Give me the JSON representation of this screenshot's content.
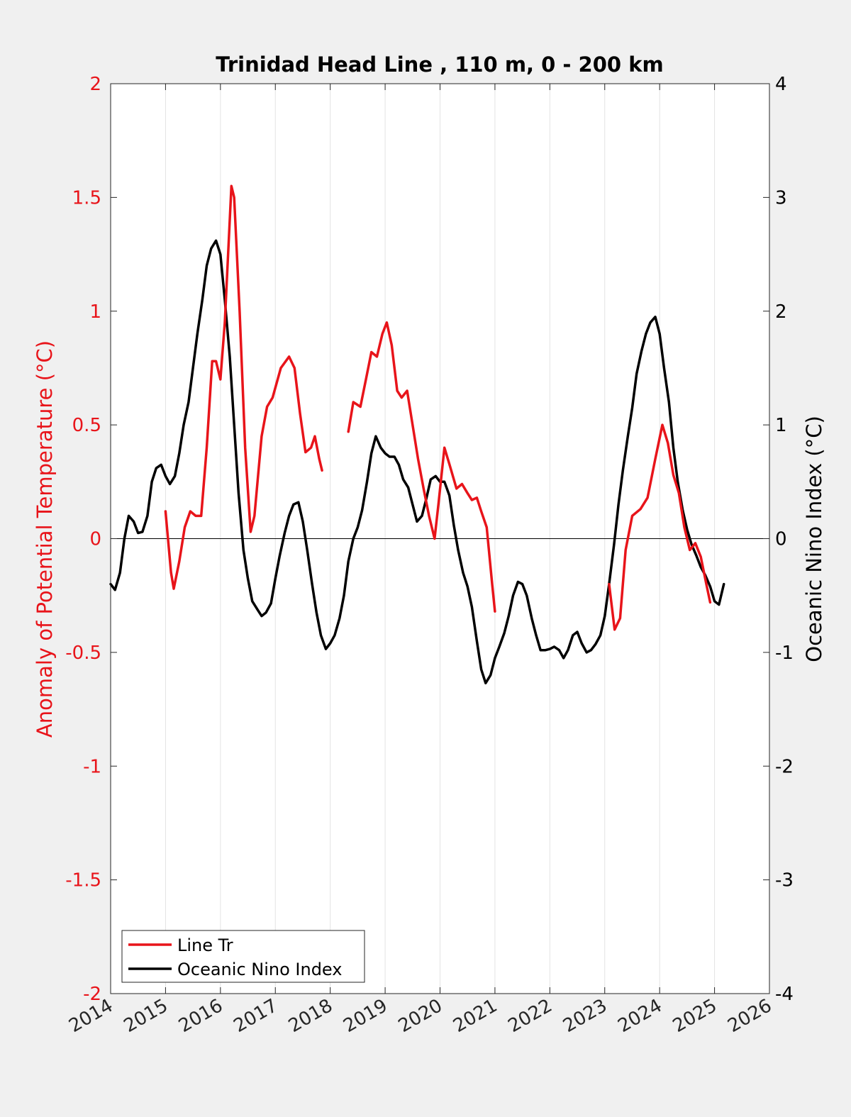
{
  "chart_data": {
    "type": "line",
    "title": "Trinidad Head Line , 110 m, 0 - 200 km",
    "xlabel": "",
    "ylabel_left": "Anomaly of Potential Temperature (°C)",
    "ylabel_right": "Oceanic Nino Index (°C)",
    "xlim": [
      2014,
      2026
    ],
    "ylim_left": [
      -2,
      2
    ],
    "ylim_right": [
      -4,
      4
    ],
    "xticks": [
      "2014",
      "2015",
      "2016",
      "2017",
      "2018",
      "2019",
      "2020",
      "2021",
      "2022",
      "2023",
      "2024",
      "2025",
      "2026"
    ],
    "yticks_left": [
      "2",
      "1.5",
      "1",
      "0.5",
      "0",
      "-0.5",
      "-1",
      "-1.5",
      "-2"
    ],
    "yticks_right": [
      "4",
      "3",
      "2",
      "1",
      "0",
      "-1",
      "-2",
      "-3",
      "-4"
    ],
    "grid": "vertical x-grid on",
    "legend_position": "bottom-left",
    "colors": {
      "line_tr": "#e8141a",
      "oni": "#000000",
      "left_axis": "#e8141a",
      "right_axis": "#000000"
    },
    "series": [
      {
        "name": "Line Tr",
        "axis": "left",
        "segments": [
          [
            [
              2015.0,
              0.12
            ],
            [
              2015.1,
              -0.15
            ],
            [
              2015.15,
              -0.22
            ],
            [
              2015.25,
              -0.1
            ],
            [
              2015.35,
              0.05
            ],
            [
              2015.45,
              0.12
            ],
            [
              2015.55,
              0.1
            ],
            [
              2015.65,
              0.1
            ],
            [
              2015.75,
              0.4
            ],
            [
              2015.85,
              0.78
            ],
            [
              2015.92,
              0.78
            ],
            [
              2016.0,
              0.7
            ],
            [
              2016.08,
              0.95
            ],
            [
              2016.2,
              1.55
            ],
            [
              2016.25,
              1.5
            ],
            [
              2016.35,
              1.0
            ],
            [
              2016.45,
              0.4
            ],
            [
              2016.55,
              0.03
            ],
            [
              2016.62,
              0.1
            ],
            [
              2016.75,
              0.45
            ],
            [
              2016.85,
              0.58
            ],
            [
              2016.95,
              0.62
            ],
            [
              2017.1,
              0.75
            ],
            [
              2017.25,
              0.8
            ],
            [
              2017.35,
              0.75
            ],
            [
              2017.45,
              0.55
            ],
            [
              2017.55,
              0.38
            ],
            [
              2017.65,
              0.4
            ],
            [
              2017.72,
              0.45
            ],
            [
              2017.8,
              0.35
            ],
            [
              2017.85,
              0.3
            ]
          ],
          [
            [
              2018.33,
              0.47
            ],
            [
              2018.42,
              0.6
            ],
            [
              2018.55,
              0.58
            ],
            [
              2018.65,
              0.7
            ],
            [
              2018.75,
              0.82
            ],
            [
              2018.85,
              0.8
            ],
            [
              2018.95,
              0.9
            ],
            [
              2019.03,
              0.95
            ],
            [
              2019.12,
              0.85
            ],
            [
              2019.22,
              0.65
            ],
            [
              2019.3,
              0.62
            ],
            [
              2019.4,
              0.65
            ],
            [
              2019.5,
              0.5
            ],
            [
              2019.6,
              0.35
            ],
            [
              2019.7,
              0.22
            ],
            [
              2019.8,
              0.1
            ],
            [
              2019.9,
              0.0
            ],
            [
              2019.97,
              0.15
            ],
            [
              2020.08,
              0.4
            ],
            [
              2020.18,
              0.32
            ],
            [
              2020.3,
              0.22
            ],
            [
              2020.4,
              0.24
            ],
            [
              2020.5,
              0.2
            ],
            [
              2020.58,
              0.17
            ],
            [
              2020.67,
              0.18
            ],
            [
              2020.75,
              0.12
            ],
            [
              2020.85,
              0.05
            ],
            [
              2020.95,
              -0.2
            ],
            [
              2021.0,
              -0.32
            ]
          ],
          [
            [
              2023.08,
              -0.2
            ],
            [
              2023.18,
              -0.4
            ],
            [
              2023.28,
              -0.35
            ],
            [
              2023.38,
              -0.05
            ],
            [
              2023.5,
              0.1
            ],
            [
              2023.65,
              0.13
            ],
            [
              2023.78,
              0.18
            ],
            [
              2023.92,
              0.35
            ],
            [
              2024.05,
              0.5
            ],
            [
              2024.15,
              0.42
            ],
            [
              2024.25,
              0.28
            ],
            [
              2024.35,
              0.2
            ],
            [
              2024.45,
              0.05
            ],
            [
              2024.55,
              -0.05
            ],
            [
              2024.65,
              -0.02
            ],
            [
              2024.75,
              -0.08
            ],
            [
              2024.85,
              -0.2
            ],
            [
              2024.92,
              -0.28
            ]
          ]
        ]
      },
      {
        "name": "Oceanic Nino Index",
        "axis": "right",
        "segments": [
          [
            [
              2014.0,
              -0.4
            ],
            [
              2014.08,
              -0.45
            ],
            [
              2014.17,
              -0.3
            ],
            [
              2014.25,
              0.0
            ],
            [
              2014.33,
              0.2
            ],
            [
              2014.42,
              0.15
            ],
            [
              2014.5,
              0.05
            ],
            [
              2014.58,
              0.06
            ],
            [
              2014.67,
              0.2
            ],
            [
              2014.75,
              0.5
            ],
            [
              2014.83,
              0.62
            ],
            [
              2014.92,
              0.65
            ],
            [
              2015.0,
              0.55
            ],
            [
              2015.08,
              0.48
            ],
            [
              2015.17,
              0.55
            ],
            [
              2015.25,
              0.75
            ],
            [
              2015.33,
              1.0
            ],
            [
              2015.42,
              1.2
            ],
            [
              2015.5,
              1.5
            ],
            [
              2015.58,
              1.8
            ],
            [
              2015.67,
              2.1
            ],
            [
              2015.75,
              2.4
            ],
            [
              2015.83,
              2.55
            ],
            [
              2015.92,
              2.62
            ],
            [
              2016.0,
              2.5
            ],
            [
              2016.08,
              2.1
            ],
            [
              2016.17,
              1.6
            ],
            [
              2016.25,
              1.0
            ],
            [
              2016.33,
              0.4
            ],
            [
              2016.42,
              -0.1
            ],
            [
              2016.5,
              -0.35
            ],
            [
              2016.58,
              -0.55
            ],
            [
              2016.67,
              -0.62
            ],
            [
              2016.75,
              -0.68
            ],
            [
              2016.83,
              -0.65
            ],
            [
              2016.92,
              -0.57
            ],
            [
              2017.0,
              -0.35
            ],
            [
              2017.08,
              -0.15
            ],
            [
              2017.17,
              0.05
            ],
            [
              2017.25,
              0.2
            ],
            [
              2017.33,
              0.3
            ],
            [
              2017.42,
              0.32
            ],
            [
              2017.5,
              0.15
            ],
            [
              2017.58,
              -0.1
            ],
            [
              2017.67,
              -0.4
            ],
            [
              2017.75,
              -0.65
            ],
            [
              2017.83,
              -0.85
            ],
            [
              2017.92,
              -0.97
            ],
            [
              2018.0,
              -0.92
            ],
            [
              2018.08,
              -0.85
            ],
            [
              2018.17,
              -0.7
            ],
            [
              2018.25,
              -0.5
            ],
            [
              2018.33,
              -0.2
            ],
            [
              2018.42,
              0.0
            ],
            [
              2018.5,
              0.1
            ],
            [
              2018.58,
              0.25
            ],
            [
              2018.67,
              0.5
            ],
            [
              2018.75,
              0.75
            ],
            [
              2018.83,
              0.9
            ],
            [
              2018.92,
              0.8
            ],
            [
              2019.0,
              0.75
            ],
            [
              2019.08,
              0.72
            ],
            [
              2019.17,
              0.72
            ],
            [
              2019.25,
              0.65
            ],
            [
              2019.33,
              0.52
            ],
            [
              2019.42,
              0.45
            ],
            [
              2019.5,
              0.3
            ],
            [
              2019.58,
              0.15
            ],
            [
              2019.67,
              0.2
            ],
            [
              2019.75,
              0.35
            ],
            [
              2019.83,
              0.52
            ],
            [
              2019.92,
              0.55
            ],
            [
              2020.0,
              0.5
            ],
            [
              2020.08,
              0.5
            ],
            [
              2020.17,
              0.38
            ],
            [
              2020.25,
              0.12
            ],
            [
              2020.33,
              -0.1
            ],
            [
              2020.42,
              -0.3
            ],
            [
              2020.5,
              -0.42
            ],
            [
              2020.58,
              -0.6
            ],
            [
              2020.67,
              -0.9
            ],
            [
              2020.75,
              -1.15
            ],
            [
              2020.83,
              -1.27
            ],
            [
              2020.92,
              -1.2
            ],
            [
              2021.0,
              -1.05
            ],
            [
              2021.08,
              -0.95
            ],
            [
              2021.17,
              -0.83
            ],
            [
              2021.25,
              -0.68
            ],
            [
              2021.33,
              -0.5
            ],
            [
              2021.42,
              -0.38
            ],
            [
              2021.5,
              -0.4
            ],
            [
              2021.58,
              -0.5
            ],
            [
              2021.67,
              -0.7
            ],
            [
              2021.75,
              -0.85
            ],
            [
              2021.83,
              -0.98
            ],
            [
              2021.92,
              -0.98
            ],
            [
              2022.0,
              -0.97
            ],
            [
              2022.08,
              -0.95
            ],
            [
              2022.17,
              -0.98
            ],
            [
              2022.25,
              -1.05
            ],
            [
              2022.33,
              -0.98
            ],
            [
              2022.42,
              -0.85
            ],
            [
              2022.5,
              -0.82
            ],
            [
              2022.58,
              -0.92
            ],
            [
              2022.67,
              -1.0
            ],
            [
              2022.75,
              -0.98
            ],
            [
              2022.83,
              -0.93
            ],
            [
              2022.92,
              -0.85
            ],
            [
              2023.0,
              -0.68
            ],
            [
              2023.08,
              -0.4
            ],
            [
              2023.17,
              -0.05
            ],
            [
              2023.25,
              0.3
            ],
            [
              2023.33,
              0.6
            ],
            [
              2023.42,
              0.9
            ],
            [
              2023.5,
              1.15
            ],
            [
              2023.58,
              1.45
            ],
            [
              2023.67,
              1.65
            ],
            [
              2023.75,
              1.8
            ],
            [
              2023.83,
              1.9
            ],
            [
              2023.92,
              1.95
            ],
            [
              2024.0,
              1.8
            ],
            [
              2024.08,
              1.5
            ],
            [
              2024.17,
              1.2
            ],
            [
              2024.25,
              0.8
            ],
            [
              2024.33,
              0.5
            ],
            [
              2024.42,
              0.25
            ],
            [
              2024.5,
              0.08
            ],
            [
              2024.58,
              -0.05
            ],
            [
              2024.67,
              -0.15
            ],
            [
              2024.75,
              -0.25
            ],
            [
              2024.83,
              -0.32
            ],
            [
              2024.92,
              -0.42
            ],
            [
              2025.0,
              -0.55
            ],
            [
              2025.08,
              -0.58
            ],
            [
              2025.17,
              -0.4
            ]
          ]
        ]
      }
    ]
  },
  "legend": {
    "items": [
      {
        "label": "Line Tr"
      },
      {
        "label": "Oceanic Nino Index"
      }
    ]
  }
}
